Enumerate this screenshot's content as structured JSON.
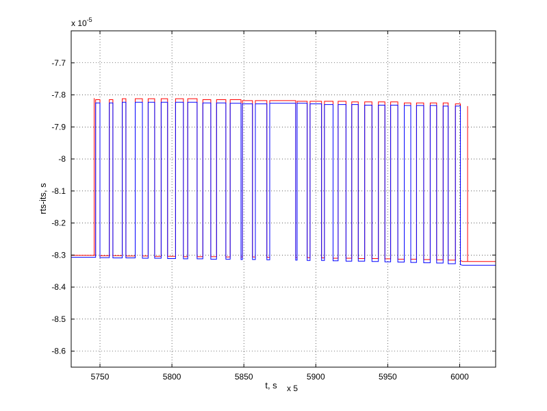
{
  "chart_data": {
    "type": "line",
    "title": "",
    "xlabel": "t, s",
    "ylabel": "rts-its, s",
    "x_multiplier_label": "x 5",
    "y_multiplier_base": "x 10",
    "y_multiplier_exp": "-5",
    "xlim": [
      5730,
      6025
    ],
    "ylim": [
      -8.65,
      -7.6
    ],
    "xticks": [
      5750,
      5800,
      5850,
      5900,
      5950,
      6000
    ],
    "xtick_labels": [
      "5750",
      "5800",
      "5850",
      "5900",
      "5950",
      "6000"
    ],
    "yticks": [
      -7.7,
      -7.8,
      -7.9,
      -8,
      -8.1,
      -8.2,
      -8.3,
      -8.4,
      -8.5,
      -8.6
    ],
    "ytick_labels": [
      "-7.7",
      "-7.8",
      "-7.9",
      "-8",
      "-8.1",
      "-8.2",
      "-8.3",
      "-8.4",
      "-8.5",
      "-8.6"
    ],
    "grid": true,
    "legend": "none",
    "series": [
      {
        "color": "#ff0000",
        "segments": [
          [
            5747.0,
            5750.0,
            -7.815,
            -8.301,
            -8.302
          ],
          [
            5756.5,
            5759.0,
            -7.815,
            -8.302,
            -8.302
          ],
          [
            5765.5,
            5768.0,
            -7.812,
            -8.302,
            -8.303
          ],
          [
            5774.5,
            5779.5,
            -7.812,
            -8.303,
            -8.303
          ],
          [
            5783.5,
            5788.0,
            -7.812,
            -8.303,
            -8.304
          ],
          [
            5792.5,
            5797.0,
            -7.812,
            -8.304,
            -8.304
          ],
          [
            5802.5,
            5808.0,
            -7.812,
            -8.304,
            -8.305
          ],
          [
            5811.0,
            5817.5,
            -7.812,
            -8.305,
            -8.305
          ],
          [
            5821.5,
            5827.0,
            -7.815,
            -8.305,
            -8.305
          ],
          [
            5831.0,
            5837.5,
            -7.815,
            -8.305,
            -8.306
          ],
          [
            5840.5,
            5848.0,
            -7.815,
            -8.306,
            -8.306
          ],
          [
            5849.0,
            5856.0,
            -7.818,
            -8.306,
            -8.306
          ],
          [
            5858.0,
            5866.0,
            -7.818,
            -8.306,
            -8.307
          ],
          [
            5868.0,
            5886.0,
            -7.818,
            -8.307,
            -8.308
          ],
          [
            5887.0,
            5894.0,
            -7.82,
            -8.308,
            -8.308
          ],
          [
            5896.0,
            5904.0,
            -7.82,
            -8.308,
            -8.309
          ],
          [
            5906.0,
            5912.0,
            -7.82,
            -8.309,
            -8.31
          ],
          [
            5915.5,
            5921.0,
            -7.82,
            -8.31,
            -8.31
          ],
          [
            5925.0,
            5929.5,
            -7.822,
            -8.31,
            -8.311
          ],
          [
            5934.0,
            5939.0,
            -7.822,
            -8.311,
            -8.311
          ],
          [
            5943.5,
            5948.0,
            -7.822,
            -8.311,
            -8.312
          ],
          [
            5952.0,
            5957.0,
            -7.822,
            -8.312,
            -8.313
          ],
          [
            5961.5,
            5966.0,
            -7.825,
            -8.313,
            -8.313
          ],
          [
            5970.0,
            5975.0,
            -7.825,
            -8.313,
            -8.314
          ],
          [
            5979.5,
            5984.0,
            -7.825,
            -8.314,
            -8.315
          ],
          [
            5988.5,
            5992.0,
            -7.825,
            -8.315,
            -8.316
          ],
          [
            5997.0,
            6000.5,
            -7.828,
            -8.316,
            -8.317
          ]
        ],
        "spikes": [
          [
            5746.0,
            -7.81
          ],
          [
            6005.5,
            -7.835
          ]
        ],
        "baseline_end": -8.32
      },
      {
        "color": "#0000ff",
        "segments": [
          [
            5747.0,
            5750.0,
            -7.825,
            -8.307,
            -8.308
          ],
          [
            5756.5,
            5759.0,
            -7.825,
            -8.308,
            -8.309
          ],
          [
            5765.5,
            5768.0,
            -7.823,
            -8.309,
            -8.309
          ],
          [
            5774.5,
            5779.5,
            -7.823,
            -8.309,
            -8.31
          ],
          [
            5783.5,
            5788.0,
            -7.823,
            -8.31,
            -8.31
          ],
          [
            5792.5,
            5797.0,
            -7.823,
            -8.31,
            -8.311
          ],
          [
            5802.5,
            5808.0,
            -7.823,
            -8.311,
            -8.312
          ],
          [
            5811.0,
            5817.5,
            -7.823,
            -8.312,
            -8.312
          ],
          [
            5821.5,
            5827.0,
            -7.825,
            -8.312,
            -8.313
          ],
          [
            5831.0,
            5837.5,
            -7.825,
            -8.313,
            -8.313
          ],
          [
            5840.5,
            5848.0,
            -7.826,
            -8.313,
            -8.314
          ],
          [
            5849.0,
            5856.0,
            -7.828,
            -8.314,
            -8.314
          ],
          [
            5858.0,
            5866.0,
            -7.828,
            -8.314,
            -8.315
          ],
          [
            5868.0,
            5886.0,
            -7.826,
            -8.315,
            -8.316
          ],
          [
            5887.0,
            5894.0,
            -7.826,
            -8.316,
            -8.317
          ],
          [
            5896.0,
            5904.0,
            -7.828,
            -8.317,
            -8.317
          ],
          [
            5906.0,
            5912.0,
            -7.83,
            -8.317,
            -8.318
          ],
          [
            5915.5,
            5921.0,
            -7.83,
            -8.318,
            -8.319
          ],
          [
            5925.0,
            5929.5,
            -7.83,
            -8.319,
            -8.319
          ],
          [
            5934.0,
            5939.0,
            -7.832,
            -8.319,
            -8.32
          ],
          [
            5943.5,
            5948.0,
            -7.832,
            -8.32,
            -8.321
          ],
          [
            5952.0,
            5957.0,
            -7.832,
            -8.321,
            -8.322
          ],
          [
            5961.5,
            5966.0,
            -7.833,
            -8.322,
            -8.323
          ],
          [
            5970.0,
            5975.0,
            -7.833,
            -8.323,
            -8.324
          ],
          [
            5979.5,
            5984.0,
            -7.833,
            -8.324,
            -8.325
          ],
          [
            5988.5,
            5992.0,
            -7.835,
            -8.325,
            -8.327
          ],
          [
            5997.0,
            6000.5,
            -7.835,
            -8.327,
            -8.33
          ]
        ],
        "baseline_end": -8.332
      }
    ]
  }
}
